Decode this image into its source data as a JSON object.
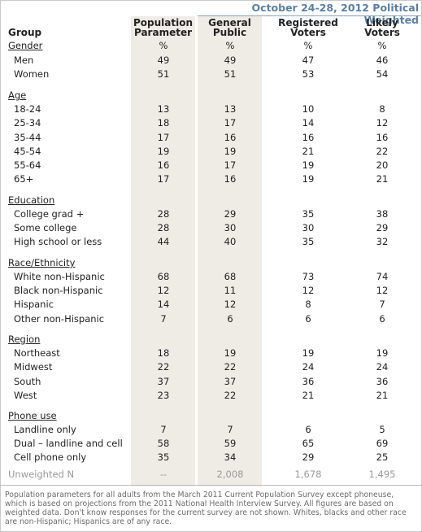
{
  "banner": "October 24-28, 2012 Political Weighted",
  "headers": {
    "group": "Group",
    "population_parameter": [
      "Population",
      "Parameter"
    ],
    "general_public": [
      "General",
      "Public"
    ],
    "registered_voters": [
      "Registered",
      "Voters"
    ],
    "likely_voters": [
      "Likely",
      "Voters"
    ]
  },
  "rows": [
    {
      "label": "Gender",
      "section": true,
      "v": [
        "%",
        "%",
        "%",
        "%"
      ]
    },
    {
      "label": "Men",
      "v": [
        "49",
        "49",
        "47",
        "46"
      ]
    },
    {
      "label": "Women",
      "v": [
        "51",
        "51",
        "53",
        "54"
      ]
    },
    {
      "label": "Age",
      "section": true,
      "v": [
        "",
        "",
        "",
        ""
      ]
    },
    {
      "label": "18-24",
      "v": [
        "13",
        "13",
        "10",
        "8"
      ]
    },
    {
      "label": "25-34",
      "v": [
        "18",
        "17",
        "14",
        "12"
      ]
    },
    {
      "label": "35-44",
      "v": [
        "17",
        "16",
        "16",
        "16"
      ]
    },
    {
      "label": "45-54",
      "v": [
        "19",
        "19",
        "21",
        "22"
      ]
    },
    {
      "label": "55-64",
      "v": [
        "16",
        "17",
        "19",
        "20"
      ]
    },
    {
      "label": "65+",
      "v": [
        "17",
        "16",
        "19",
        "21"
      ]
    },
    {
      "label": "Education",
      "section": true,
      "v": [
        "",
        "",
        "",
        ""
      ]
    },
    {
      "label": "College grad +",
      "v": [
        "28",
        "29",
        "35",
        "38"
      ]
    },
    {
      "label": "Some college",
      "v": [
        "28",
        "30",
        "30",
        "29"
      ]
    },
    {
      "label": "High school or less",
      "v": [
        "44",
        "40",
        "35",
        "32"
      ]
    },
    {
      "label": "Race/Ethnicity",
      "section": true,
      "v": [
        "",
        "",
        "",
        ""
      ]
    },
    {
      "label": "White non-Hispanic",
      "v": [
        "68",
        "68",
        "73",
        "74"
      ]
    },
    {
      "label": "Black non-Hispanic",
      "v": [
        "12",
        "11",
        "12",
        "12"
      ]
    },
    {
      "label": "Hispanic",
      "v": [
        "14",
        "12",
        "8",
        "7"
      ]
    },
    {
      "label": "Other non-Hispanic",
      "v": [
        "7",
        "6",
        "6",
        "6"
      ]
    },
    {
      "label": "Region",
      "section": true,
      "v": [
        "",
        "",
        "",
        ""
      ]
    },
    {
      "label": "Northeast",
      "v": [
        "18",
        "19",
        "19",
        "19"
      ]
    },
    {
      "label": "Midwest",
      "v": [
        "22",
        "22",
        "24",
        "24"
      ]
    },
    {
      "label": "South",
      "v": [
        "37",
        "37",
        "36",
        "36"
      ]
    },
    {
      "label": "West",
      "v": [
        "23",
        "22",
        "21",
        "21"
      ]
    },
    {
      "label": "Phone use",
      "section": true,
      "v": [
        "",
        "",
        "",
        ""
      ]
    },
    {
      "label": "Landline only",
      "v": [
        "7",
        "7",
        "6",
        "5"
      ]
    },
    {
      "label": "Dual – landline and cell",
      "v": [
        "58",
        "59",
        "65",
        "69"
      ]
    },
    {
      "label": "Cell phone only",
      "v": [
        "35",
        "34",
        "29",
        "25"
      ]
    },
    {
      "label": "Unweighted N",
      "unweighted": true,
      "v": [
        "--",
        "2,008",
        "1,678",
        "1,495"
      ]
    }
  ],
  "footnote": "Population parameters for all adults from the March 2011 Current Population Survey except phoneuse, which is based on projections from the 2011 National Health Interview Survey. All figures are based on weighted data. Don't know responses for the current survey are not shown. Whites, blacks and other race are non-Hispanic; Hispanics are of any race."
}
